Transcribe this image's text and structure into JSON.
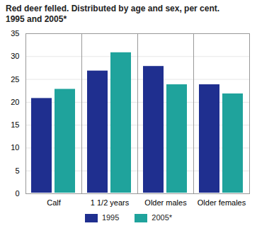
{
  "chart_data": {
    "type": "bar",
    "title": "Red deer felled. Distributed by age and sex, per cent. 1995 and 2005*",
    "categories": [
      "Calf",
      "1 1/2 years",
      "Older males",
      "Older females"
    ],
    "series": [
      {
        "name": "1995",
        "color": "#1f2f8f",
        "values": [
          21,
          27,
          28,
          24
        ]
      },
      {
        "name": "2005*",
        "color": "#1fa39c",
        "values": [
          23,
          31,
          24,
          22
        ]
      }
    ],
    "ylim": [
      0,
      35
    ],
    "yticks": [
      0,
      5,
      10,
      15,
      20,
      25,
      30,
      35
    ],
    "grid": true,
    "legend": "bottom"
  }
}
